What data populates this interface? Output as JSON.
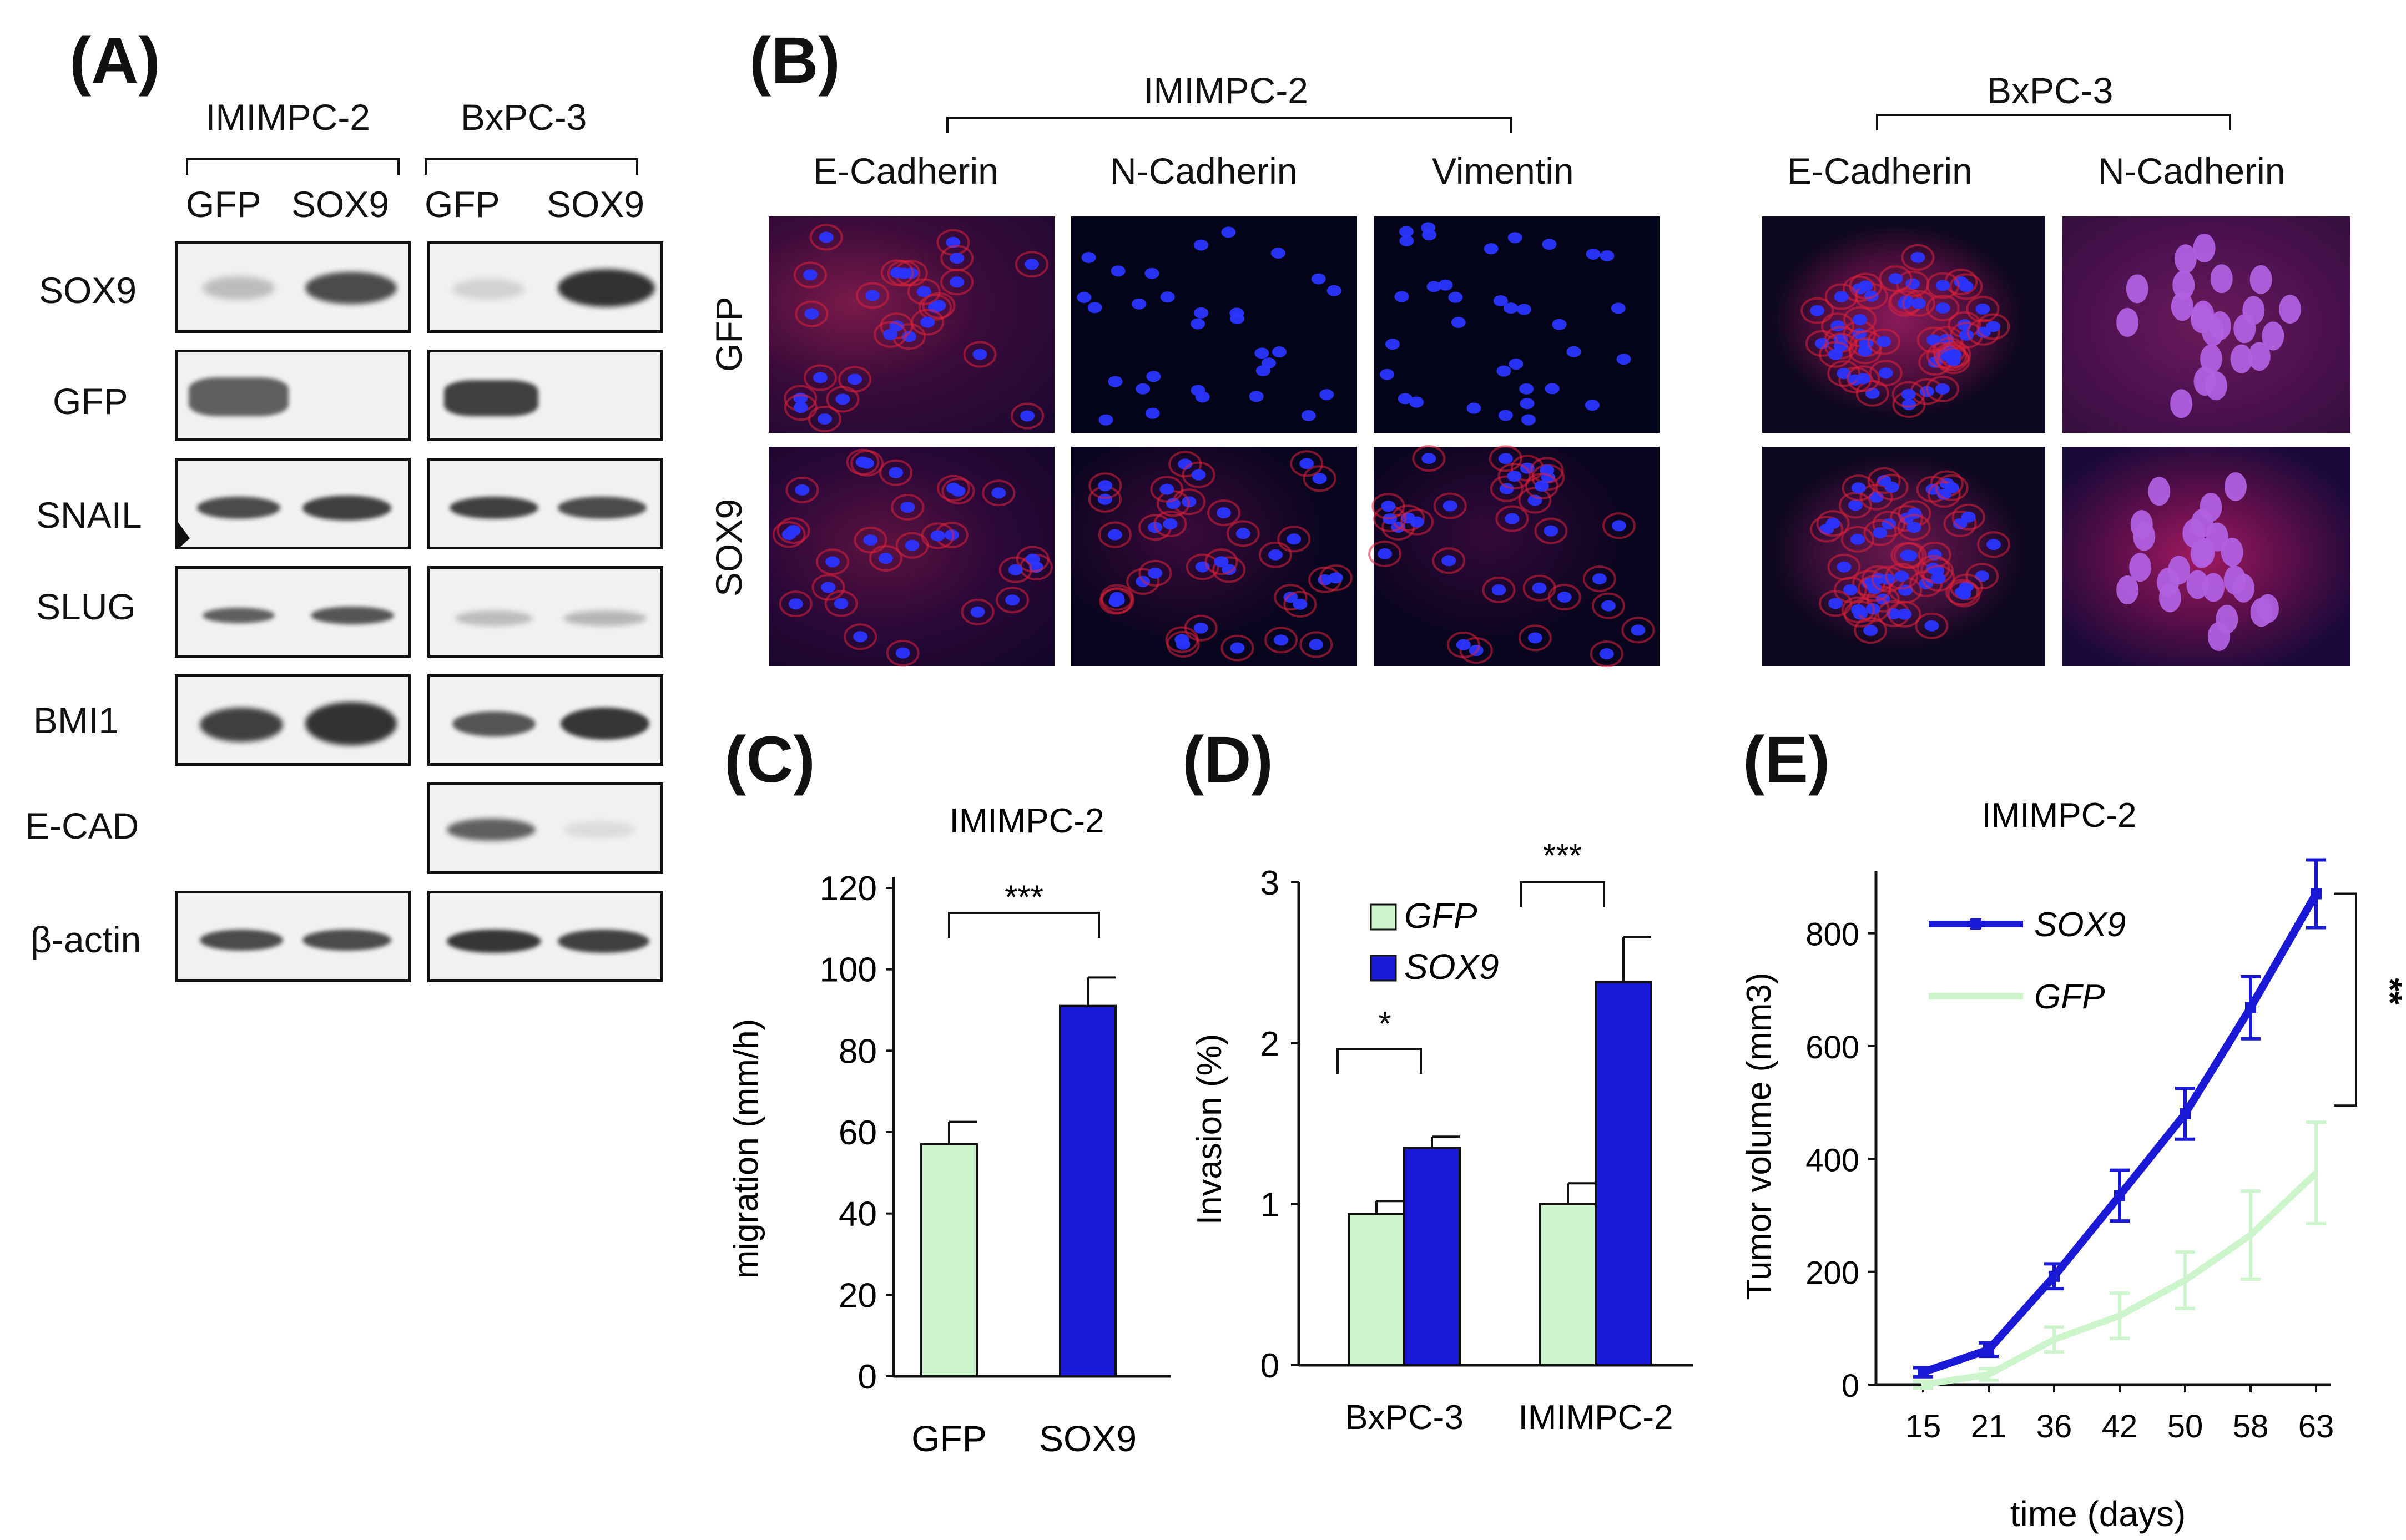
{
  "panels": {
    "A": {
      "letter": "(A)",
      "cell_lines": [
        "IMIMPC-2",
        "BxPC-3"
      ],
      "lane_labels": [
        "GFP",
        "SOX9",
        "GFP",
        "SOX9"
      ],
      "rows": [
        "SOX9",
        "GFP",
        "SNAIL",
        "SLUG",
        "BMI1",
        "E-CAD",
        "β-actin"
      ]
    },
    "B": {
      "letter": "(B)",
      "groups": [
        {
          "cell_line": "IMIMPC-2",
          "stains": [
            "E-Cadherin",
            "N-Cadherin",
            "Vimentin"
          ]
        },
        {
          "cell_line": "BxPC-3",
          "stains": [
            "E-Cadherin",
            "N-Cadherin"
          ]
        }
      ],
      "row_labels": [
        "GFP",
        "SOX9"
      ]
    },
    "C": {
      "letter": "(C)"
    },
    "D": {
      "letter": "(D)"
    },
    "E": {
      "letter": "(E)"
    }
  },
  "chart_data": [
    {
      "panel": "C",
      "type": "bar",
      "title": "IMIMPC-2",
      "ylabel": "migration (mm/h)",
      "xlabel": "",
      "categories": [
        "GFP",
        "SOX9"
      ],
      "values": [
        57,
        91
      ],
      "errors": [
        5.5,
        7
      ],
      "colors": [
        "#ccf5cc",
        "#1a1ad6"
      ],
      "ylim": [
        0,
        120
      ],
      "yticks": [
        "0",
        "20",
        "40",
        "60",
        "80",
        "100",
        "120"
      ],
      "significance": "***"
    },
    {
      "panel": "D",
      "type": "bar",
      "title": "",
      "ylabel": "Invasion (%)",
      "xlabel": "",
      "categories": [
        "BxPC-3",
        "IMIMPC-2"
      ],
      "series": [
        {
          "name": "GFP",
          "values": [
            0.94,
            1.0
          ],
          "errors": [
            0.08,
            0.13
          ],
          "color": "#ccf5cc"
        },
        {
          "name": "SOX9",
          "values": [
            1.35,
            2.38
          ],
          "errors": [
            0.07,
            0.28
          ],
          "color": "#1a1ad6"
        }
      ],
      "ylim": [
        0,
        3
      ],
      "yticks": [
        "0",
        "1",
        "2",
        "3"
      ],
      "significance": [
        "*",
        "***"
      ],
      "legend": "top-left"
    },
    {
      "panel": "E",
      "type": "line",
      "title": "IMIMPC-2",
      "ylabel": "Tumor volume (mm3)",
      "xlabel": "time (days)",
      "x": [
        "15",
        "21",
        "36",
        "42",
        "50",
        "58",
        "63"
      ],
      "series": [
        {
          "name": "SOX9",
          "values": [
            22,
            62,
            192,
            335,
            480,
            668,
            870
          ],
          "errors": [
            8,
            12,
            22,
            45,
            45,
            55,
            60
          ],
          "color": "#1a1ad6"
        },
        {
          "name": "GFP",
          "values": [
            0,
            18,
            80,
            122,
            185,
            265,
            375
          ],
          "errors": [
            6,
            10,
            22,
            40,
            50,
            78,
            90
          ],
          "color": "#ccf5cc"
        }
      ],
      "ylim": [
        0,
        900
      ],
      "yticks": [
        "0",
        "200",
        "400",
        "600",
        "800"
      ],
      "significance": "**",
      "legend": "top-left"
    }
  ]
}
